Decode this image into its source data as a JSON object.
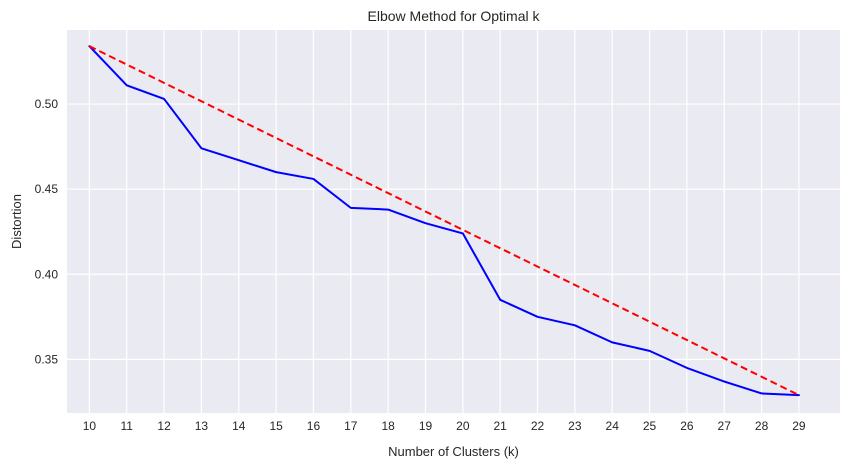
{
  "chart_data": {
    "type": "line",
    "title": "Elbow Method for Optimal k",
    "xlabel": "Number of Clusters (k)",
    "ylabel": "Distortion",
    "x": [
      10,
      11,
      12,
      13,
      14,
      15,
      16,
      17,
      18,
      19,
      20,
      21,
      22,
      23,
      24,
      25,
      26,
      27,
      28,
      29
    ],
    "xlim": [
      9.4,
      30.1
    ],
    "ylim": [
      0.3185,
      0.5435
    ],
    "y_ticks": [
      0.35,
      0.4,
      0.45,
      0.5
    ],
    "y_tick_labels": [
      "0.35",
      "0.40",
      "0.45",
      "0.50"
    ],
    "grid": true,
    "series": [
      {
        "values": [
          0.534,
          0.511,
          0.503,
          0.474,
          0.467,
          0.46,
          0.456,
          0.439,
          0.438,
          0.43,
          0.424,
          0.385,
          0.375,
          0.37,
          0.36,
          0.355,
          0.345,
          0.337,
          0.33,
          0.329
        ],
        "color": "#0000ff",
        "style": "solid"
      },
      {
        "values": [
          0.534,
          0.329
        ],
        "x": [
          10,
          29
        ],
        "color": "#ff0000",
        "style": "dashed"
      }
    ],
    "colors": {
      "plot_background": "#eaeaf2",
      "grid": "#ffffff"
    }
  }
}
